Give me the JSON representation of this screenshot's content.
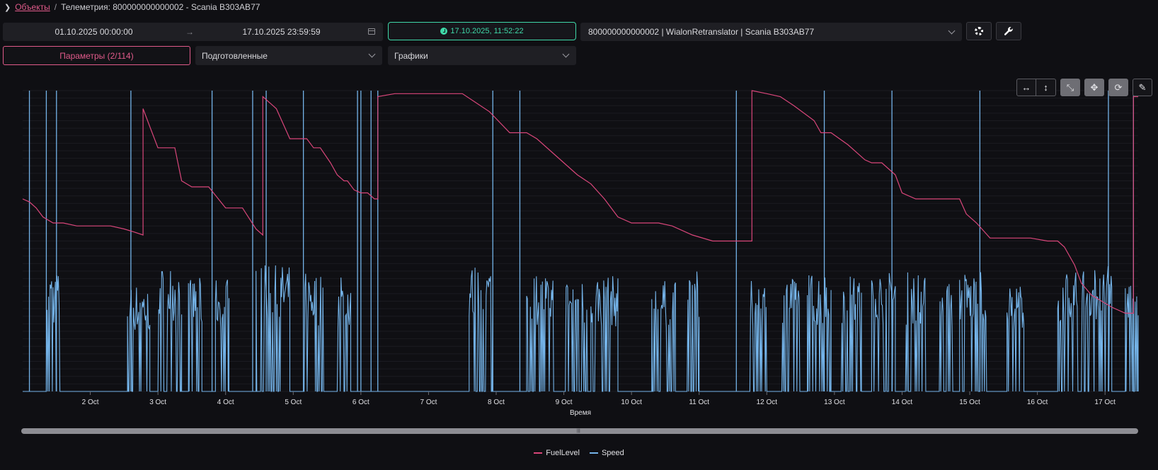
{
  "breadcrumb": {
    "root": "Объекты",
    "separator": "/",
    "current": "Телеметрия: 800000000000002 - Scania В303АВ77"
  },
  "date_range": {
    "from": "01.10.2025 00:00:00",
    "arrow": "→",
    "to": "17.10.2025 23:59:59"
  },
  "now_button": {
    "label": "17.10.2025, 11:52:22"
  },
  "object_select": {
    "value": "800000000000002 | WialonRetranslator | Scania В303АВ77"
  },
  "params_button": {
    "label": "Параметры (2/114)"
  },
  "prepared_select": {
    "value": "Подготовленные"
  },
  "graphs_select": {
    "value": "Графики"
  },
  "colors": {
    "fuel": "#d9467a",
    "speed": "#74b3e8",
    "accent": "#3fd8a8",
    "brand": "#e05a8a"
  },
  "chart_data": {
    "type": "line",
    "xlabel": "Время",
    "ticks": [
      "2 Oct",
      "3 Oct",
      "4 Oct",
      "5 Oct",
      "6 Oct",
      "7 Oct",
      "8 Oct",
      "9 Oct",
      "10 Oct",
      "11 Oct",
      "12 Oct",
      "13 Oct",
      "14 Oct",
      "15 Oct",
      "16 Oct",
      "17 Oct"
    ],
    "xlim": [
      1.0,
      17.49
    ],
    "ylim": [
      0,
      100
    ],
    "grid": true,
    "legend_placement": "bottom-center",
    "series": [
      {
        "name": "FuelLevel",
        "x": [
          1.0,
          1.1,
          1.2,
          1.3,
          1.45,
          1.6,
          1.8,
          2.0,
          2.3,
          2.5,
          2.65,
          2.78,
          2.78,
          2.88,
          3.0,
          3.25,
          3.35,
          3.5,
          3.65,
          3.75,
          4.0,
          4.25,
          4.45,
          4.55,
          4.55,
          4.75,
          4.95,
          5.2,
          5.3,
          5.4,
          5.55,
          5.65,
          5.75,
          5.8,
          5.9,
          6.0,
          6.1,
          6.2,
          6.25,
          6.25,
          6.5,
          7.0,
          7.5,
          7.7,
          7.9,
          8.2,
          8.45,
          8.6,
          8.8,
          9.0,
          9.2,
          9.4,
          9.6,
          9.8,
          10.0,
          10.4,
          10.6,
          10.9,
          11.2,
          11.5,
          11.78,
          11.78,
          12.0,
          12.2,
          12.4,
          12.7,
          12.8,
          12.95,
          13.2,
          13.45,
          13.55,
          13.7,
          13.9,
          14.0,
          14.2,
          14.5,
          14.85,
          14.95,
          15.1,
          15.3,
          15.6,
          15.9,
          16.15,
          16.3,
          16.4,
          16.55,
          16.65,
          16.8,
          16.95,
          17.1,
          17.3,
          17.42,
          17.42,
          17.49
        ],
        "y": [
          64,
          63,
          61,
          58,
          56,
          56,
          55,
          55,
          55,
          54,
          53,
          52,
          94,
          88,
          81,
          81,
          70,
          68,
          68,
          68,
          61,
          61,
          54,
          52,
          98,
          94,
          84,
          84,
          81,
          81,
          76,
          72,
          70,
          70,
          67,
          66,
          66,
          64,
          64,
          98,
          99,
          99,
          99,
          96,
          93,
          86,
          86,
          84,
          80,
          76,
          72,
          69,
          64,
          58,
          56,
          56,
          55,
          52,
          50,
          50,
          50,
          100,
          99,
          98,
          95,
          90,
          86,
          86,
          82,
          77,
          76,
          76,
          72,
          66,
          64,
          64,
          64,
          59,
          56,
          51,
          51,
          51,
          50,
          50,
          48,
          42,
          36,
          32,
          30,
          28,
          26,
          26,
          98,
          98
        ]
      },
      {
        "name": "Speed",
        "blocks": [
          [
            1.35,
            1.55
          ],
          [
            2.55,
            2.88
          ],
          [
            3.0,
            3.35
          ],
          [
            3.45,
            3.65
          ],
          [
            3.85,
            4.05
          ],
          [
            4.45,
            4.95
          ],
          [
            5.15,
            5.45
          ],
          [
            5.65,
            5.85
          ],
          [
            7.6,
            7.95
          ],
          [
            8.45,
            8.85
          ],
          [
            9.0,
            9.35
          ],
          [
            9.4,
            9.8
          ],
          [
            10.3,
            10.65
          ],
          [
            10.8,
            11.0
          ],
          [
            11.75,
            12.0
          ],
          [
            12.2,
            12.5
          ],
          [
            12.6,
            12.95
          ],
          [
            13.1,
            13.4
          ],
          [
            13.55,
            13.9
          ],
          [
            14.05,
            14.35
          ],
          [
            14.55,
            14.75
          ],
          [
            14.85,
            15.25
          ],
          [
            15.55,
            15.8
          ],
          [
            16.3,
            16.6
          ],
          [
            16.65,
            17.1
          ],
          [
            17.3,
            17.49
          ]
        ],
        "levels": [
          95,
          85,
          100,
          90,
          90,
          100,
          95,
          92,
          100,
          95,
          90,
          92,
          88,
          95,
          88,
          90,
          95,
          92,
          95,
          95,
          90,
          95,
          85,
          95,
          100,
          90
        ]
      }
    ],
    "vertical_markers": [
      1.1,
      1.35,
      1.5,
      2.6,
      3.8,
      4.4,
      4.6,
      5.15,
      5.95,
      6.0,
      6.15,
      6.25,
      7.95,
      8.35,
      11.55,
      12.85,
      13.85,
      15.15,
      17.05,
      17.42
    ]
  }
}
